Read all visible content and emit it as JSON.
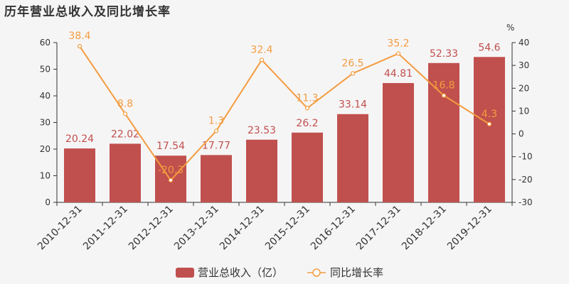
{
  "chart_data": {
    "type": "bar",
    "title": "历年营业总收入及同比增长率",
    "categories": [
      "2010-12-31",
      "2011-12-31",
      "2012-12-31",
      "2013-12-31",
      "2014-12-31",
      "2015-12-31",
      "2016-12-31",
      "2017-12-31",
      "2018-12-31",
      "2019-12-31"
    ],
    "series": [
      {
        "name": "营业总收入（亿）",
        "type": "bar",
        "axis": "left",
        "color": "#c0504d",
        "values": [
          20.24,
          22.02,
          17.54,
          17.77,
          23.53,
          26.2,
          33.14,
          44.81,
          52.33,
          54.6
        ],
        "labels": [
          "20.24",
          "22.02",
          "17.54",
          "17.77",
          "23.53",
          "26.2",
          "33.14",
          "44.81",
          "52.33",
          "54.6"
        ]
      },
      {
        "name": "同比增长率",
        "type": "line",
        "axis": "right",
        "color": "#f39c40",
        "values": [
          38.4,
          8.8,
          -20.3,
          1.3,
          32.4,
          11.3,
          26.5,
          35.2,
          16.8,
          4.3
        ],
        "labels": [
          "38.4",
          "8.8",
          "-20.3",
          "1.3",
          "32.4",
          "11.3",
          "26.5",
          "35.2",
          "16.8",
          "4.3"
        ]
      }
    ],
    "y_left": {
      "min": 0,
      "max": 60,
      "step": 10,
      "ticks": [
        "0",
        "10",
        "20",
        "30",
        "40",
        "50",
        "60"
      ]
    },
    "y_right": {
      "min": -30,
      "max": 40,
      "step": 10,
      "unit": "%",
      "ticks": [
        "-30",
        "-20",
        "-10",
        "0",
        "10",
        "20",
        "30",
        "40"
      ]
    },
    "grid": false,
    "legend_position": "bottom-center"
  }
}
